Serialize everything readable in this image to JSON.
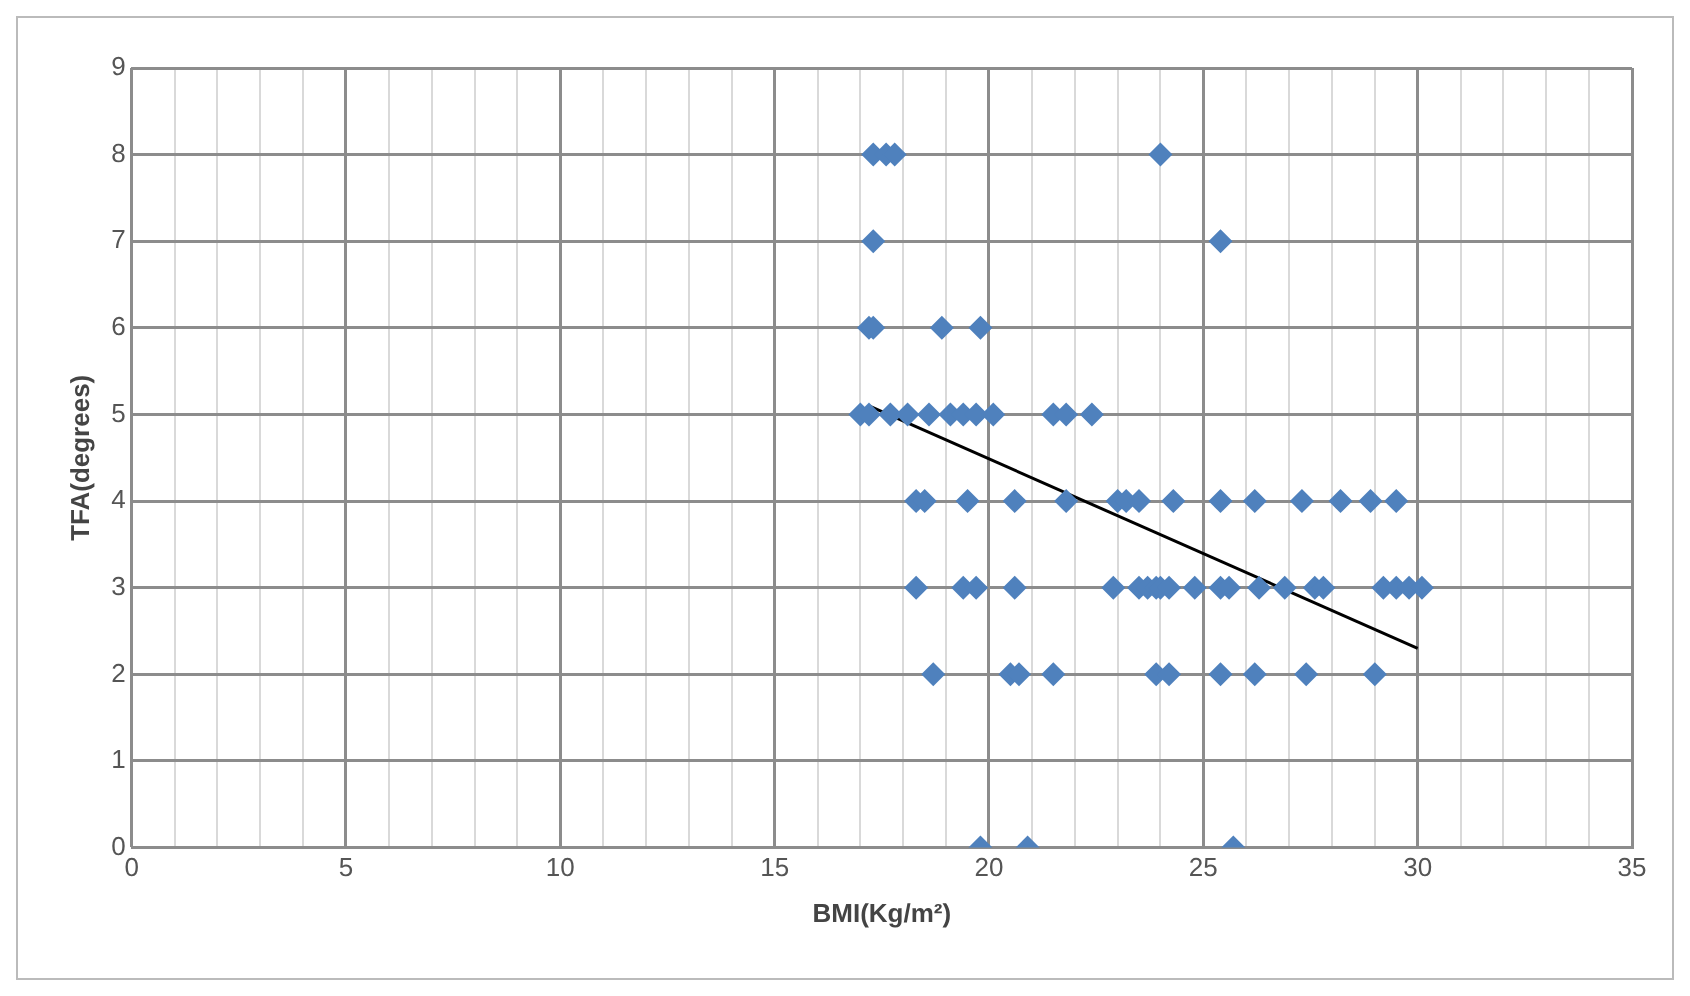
{
  "chart_data": {
    "type": "scatter",
    "xlabel": "BMI(Kg/m²)",
    "ylabel": "TFA(degrees)",
    "xlim": [
      0,
      35
    ],
    "ylim": [
      0,
      9
    ],
    "xticks": [
      0,
      {
        "value": 1,
        "label": null
      },
      {
        "value": 2,
        "label": null
      },
      {
        "value": 3,
        "label": null
      },
      {
        "value": 4,
        "label": null
      },
      5,
      {
        "value": 6,
        "label": null
      },
      {
        "value": 7,
        "label": null
      },
      {
        "value": 8,
        "label": null
      },
      {
        "value": 9,
        "label": null
      },
      10,
      {
        "value": 11,
        "label": null
      },
      {
        "value": 12,
        "label": null
      },
      {
        "value": 13,
        "label": null
      },
      {
        "value": 14,
        "label": null
      },
      15,
      {
        "value": 16,
        "label": null
      },
      {
        "value": 17,
        "label": null
      },
      {
        "value": 18,
        "label": null
      },
      {
        "value": 19,
        "label": null
      },
      20,
      {
        "value": 21,
        "label": null
      },
      {
        "value": 22,
        "label": null
      },
      {
        "value": 23,
        "label": null
      },
      {
        "value": 24,
        "label": null
      },
      25,
      {
        "value": 26,
        "label": null
      },
      {
        "value": 27,
        "label": null
      },
      {
        "value": 28,
        "label": null
      },
      {
        "value": 29,
        "label": null
      },
      30,
      {
        "value": 31,
        "label": null
      },
      {
        "value": 32,
        "label": null
      },
      {
        "value": 33,
        "label": null
      },
      {
        "value": 34,
        "label": null
      },
      35
    ],
    "yticks": [
      0,
      1,
      2,
      3,
      4,
      5,
      6,
      7,
      8,
      9
    ],
    "grid": true,
    "legend": false,
    "marker": "diamond",
    "series": [
      {
        "color": "#4f81bd",
        "x": [
          17.3,
          17.6,
          17.8,
          24.0,
          17.3,
          25.4,
          17.2,
          17.3,
          18.9,
          19.8,
          17.0,
          17.2,
          17.7,
          18.1,
          18.6,
          19.1,
          19.4,
          19.7,
          20.1,
          21.5,
          21.8,
          22.4,
          18.3,
          18.5,
          19.5,
          20.6,
          21.8,
          23.0,
          23.2,
          23.5,
          24.3,
          25.4,
          26.2,
          27.3,
          28.2,
          28.9,
          29.5,
          18.3,
          19.4,
          19.7,
          20.6,
          22.9,
          23.5,
          23.7,
          23.9,
          24.0,
          24.2,
          24.8,
          25.4,
          25.6,
          26.3,
          26.9,
          27.6,
          27.8,
          29.2,
          29.5,
          29.8,
          30.1,
          18.7,
          20.5,
          20.7,
          21.5,
          23.9,
          24.2,
          25.4,
          26.2,
          27.4,
          29.0,
          19.8,
          20.9,
          25.7
        ],
        "values": [
          8,
          8,
          8,
          8,
          7,
          7,
          6,
          6,
          6,
          6,
          5,
          5,
          5,
          5,
          5,
          5,
          5,
          5,
          5,
          5,
          5,
          5,
          4,
          4,
          4,
          4,
          4,
          4,
          4,
          4,
          4,
          4,
          4,
          4,
          4,
          4,
          4,
          3,
          3,
          3,
          3,
          3,
          3,
          3,
          3,
          3,
          3,
          3,
          3,
          3,
          3,
          3,
          3,
          3,
          3,
          3,
          3,
          3,
          2,
          2,
          2,
          2,
          2,
          2,
          2,
          2,
          2,
          2,
          0,
          0,
          0
        ]
      },
      {
        "type": "line",
        "color": "#000000",
        "x": [
          17.2,
          30.0
        ],
        "values": [
          5.1,
          2.3
        ],
        "marker": "none"
      }
    ]
  }
}
